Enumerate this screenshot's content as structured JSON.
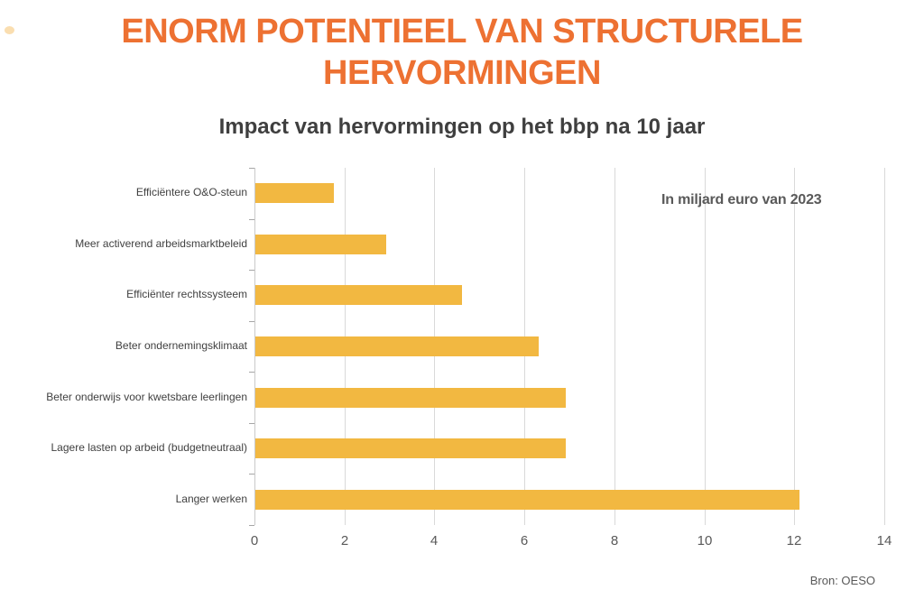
{
  "header": {
    "title": "ENORM POTENTIEEL VAN STRUCTURELE HERVORMINGEN",
    "title_color": "#ED7132",
    "subtitle": "Impact van hervormingen op het bbp na 10 jaar",
    "subtitle_color": "#3F3F3F"
  },
  "annotation": "In miljard euro van 2023",
  "source": "Bron: OESO",
  "chart_data": {
    "type": "bar",
    "orientation": "horizontal",
    "title": "Impact van hervormingen op het bbp na 10 jaar",
    "categories": [
      "Efficiëntere O&O-steun",
      "Meer activerend arbeidsmarktbeleid",
      "Efficiënter rechtssysteem",
      "Beter ondernemingsklimaat",
      "Beter onderwijs voor kwetsbare leerlingen",
      "Lagere lasten op arbeid (budgetneutraal)",
      "Langer werken"
    ],
    "values": [
      1.75,
      2.9,
      4.6,
      6.3,
      6.9,
      6.9,
      12.1
    ],
    "unit_note": "In miljard euro van 2023",
    "xlabel": "",
    "ylabel": "",
    "xlim": [
      0,
      14
    ],
    "xticks": [
      0,
      2,
      4,
      6,
      8,
      10,
      12,
      14
    ],
    "grid": true,
    "legend": false,
    "bar_color": "#F2B841",
    "gridline_color": "#D9D9D9",
    "axis_line_color": "#C9C9C9",
    "tick_mark_color": "#A6A6A6",
    "tick_label_color": "#595959",
    "category_label_color": "#404040",
    "source": "Bron: OESO"
  }
}
